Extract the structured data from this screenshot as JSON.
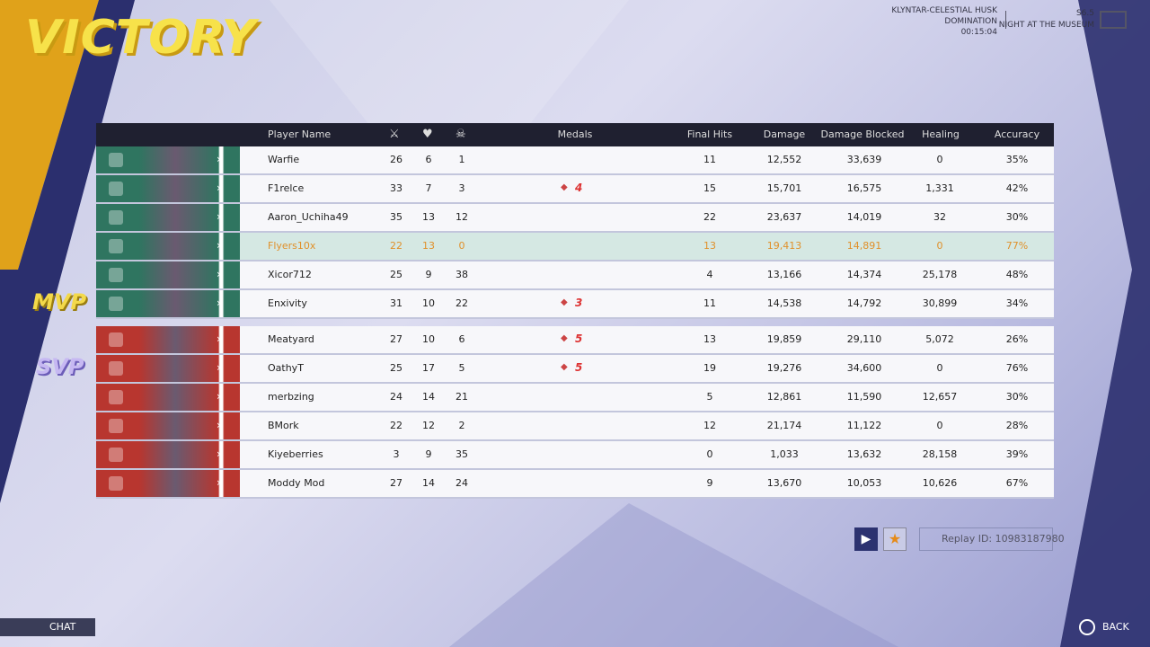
{
  "header": {
    "title": "VICTORY",
    "map": "KLYNTAR-CELESTIAL HUSK",
    "mode": "DOMINATION",
    "time": "00:15:04",
    "season": "S6.5",
    "season_name": "NIGHT AT THE MUSEUM"
  },
  "awards": {
    "mvp": "MVP",
    "svp": "SVP"
  },
  "table": {
    "columns": [
      "Player Name",
      "Medals",
      "Final Hits",
      "Damage",
      "Damage Blocked",
      "Healing",
      "Accuracy"
    ],
    "highlight": {
      "team": 0,
      "row": 3
    },
    "teams": [
      {
        "color": "#2f7560",
        "rows": [
          {
            "name": "Warfie",
            "k": "26",
            "d": "6",
            "a": "1",
            "final_hits": "11",
            "damage": "12,552",
            "blocked": "33,639",
            "healing": "0",
            "accuracy": "35%"
          },
          {
            "name": "F1relce",
            "k": "33",
            "d": "7",
            "a": "3",
            "medal": "4",
            "final_hits": "15",
            "damage": "15,701",
            "blocked": "16,575",
            "healing": "1,331",
            "accuracy": "42%"
          },
          {
            "name": "Aaron_Uchiha49",
            "k": "35",
            "d": "13",
            "a": "12",
            "final_hits": "22",
            "damage": "23,637",
            "blocked": "14,019",
            "healing": "32",
            "accuracy": "30%"
          },
          {
            "name": "Flyers10x",
            "k": "22",
            "d": "13",
            "a": "0",
            "final_hits": "13",
            "damage": "19,413",
            "blocked": "14,891",
            "healing": "0",
            "accuracy": "77%"
          },
          {
            "name": "Xicor712",
            "k": "25",
            "d": "9",
            "a": "38",
            "final_hits": "4",
            "damage": "13,166",
            "blocked": "14,374",
            "healing": "25,178",
            "accuracy": "48%"
          },
          {
            "name": "Enxivity",
            "k": "31",
            "d": "10",
            "a": "22",
            "medal": "3",
            "final_hits": "11",
            "damage": "14,538",
            "blocked": "14,792",
            "healing": "30,899",
            "accuracy": "34%"
          }
        ]
      },
      {
        "color": "#b8362f",
        "rows": [
          {
            "name": "Meatyard",
            "k": "27",
            "d": "10",
            "a": "6",
            "medal": "5",
            "final_hits": "13",
            "damage": "19,859",
            "blocked": "29,110",
            "healing": "5,072",
            "accuracy": "26%"
          },
          {
            "name": "OathyT",
            "k": "25",
            "d": "17",
            "a": "5",
            "medal": "5",
            "final_hits": "19",
            "damage": "19,276",
            "blocked": "34,600",
            "healing": "0",
            "accuracy": "76%"
          },
          {
            "name": "merbzing",
            "k": "24",
            "d": "14",
            "a": "21",
            "final_hits": "5",
            "damage": "12,861",
            "blocked": "11,590",
            "healing": "12,657",
            "accuracy": "30%"
          },
          {
            "name": "BMork",
            "k": "22",
            "d": "12",
            "a": "2",
            "final_hits": "12",
            "damage": "21,174",
            "blocked": "11,122",
            "healing": "0",
            "accuracy": "28%"
          },
          {
            "name": "Kiyeberries",
            "k": "3",
            "d": "9",
            "a": "35",
            "final_hits": "0",
            "damage": "1,033",
            "blocked": "13,632",
            "healing": "28,158",
            "accuracy": "39%"
          },
          {
            "name": "Moddy Mod",
            "k": "27",
            "d": "14",
            "a": "24",
            "final_hits": "9",
            "damage": "13,670",
            "blocked": "10,053",
            "healing": "10,626",
            "accuracy": "67%"
          }
        ]
      }
    ]
  },
  "footer": {
    "replay": "Replay ID: 10983187980",
    "chat": "CHAT",
    "back": "BACK"
  }
}
